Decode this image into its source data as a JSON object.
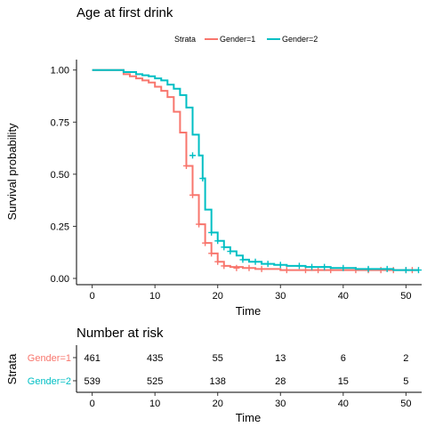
{
  "chart_data": [
    {
      "type": "line",
      "title": "Age at first drink",
      "xlabel": "Time",
      "ylabel": "Survival probability",
      "xlim": [
        -2.5,
        52.5
      ],
      "ylim": [
        -0.03,
        1.05
      ],
      "x_ticks": [
        0,
        10,
        20,
        30,
        40,
        50
      ],
      "y_ticks": [
        0,
        0.25,
        0.5,
        0.75,
        1
      ],
      "y_tick_labels": [
        "0.00",
        "0.25",
        "0.50",
        "0.75",
        "1.00"
      ],
      "x_tick_labels": [
        "0",
        "10",
        "20",
        "30",
        "40",
        "50"
      ],
      "grid": false,
      "legend": {
        "title": "Strata",
        "placement": "top"
      },
      "series": [
        {
          "name": "Gender=1",
          "color": "#F8766D",
          "step": [
            [
              0,
              1.0
            ],
            [
              5,
              0.98
            ],
            [
              6,
              0.97
            ],
            [
              7,
              0.96
            ],
            [
              8,
              0.95
            ],
            [
              9,
              0.94
            ],
            [
              10,
              0.92
            ],
            [
              11,
              0.9
            ],
            [
              12,
              0.87
            ],
            [
              13,
              0.8
            ],
            [
              14,
              0.7
            ],
            [
              15,
              0.54
            ],
            [
              16,
              0.4
            ],
            [
              17,
              0.26
            ],
            [
              18,
              0.17
            ],
            [
              19,
              0.12
            ],
            [
              20,
              0.08
            ],
            [
              21,
              0.06
            ],
            [
              22,
              0.055
            ],
            [
              24,
              0.05
            ],
            [
              26,
              0.045
            ],
            [
              30,
              0.04
            ],
            [
              52,
              0.04
            ]
          ],
          "censor": [
            [
              15,
              0.54
            ],
            [
              16,
              0.4
            ],
            [
              17,
              0.26
            ],
            [
              18,
              0.17
            ],
            [
              19,
              0.12
            ],
            [
              20,
              0.08
            ],
            [
              21,
              0.06
            ],
            [
              23,
              0.05
            ],
            [
              25,
              0.05
            ],
            [
              27,
              0.045
            ],
            [
              31,
              0.04
            ],
            [
              34,
              0.04
            ],
            [
              36,
              0.04
            ],
            [
              38,
              0.04
            ],
            [
              42,
              0.04
            ],
            [
              44,
              0.04
            ],
            [
              46,
              0.04
            ],
            [
              48,
              0.04
            ],
            [
              50,
              0.04
            ],
            [
              51,
              0.04
            ]
          ]
        },
        {
          "name": "Gender=2",
          "color": "#00BFC4",
          "step": [
            [
              0,
              1.0
            ],
            [
              5,
              0.99
            ],
            [
              7,
              0.98
            ],
            [
              8,
              0.975
            ],
            [
              9,
              0.97
            ],
            [
              10,
              0.96
            ],
            [
              11,
              0.95
            ],
            [
              12,
              0.93
            ],
            [
              13,
              0.91
            ],
            [
              14,
              0.88
            ],
            [
              15,
              0.82
            ],
            [
              16,
              0.69
            ],
            [
              17,
              0.59
            ],
            [
              17.6,
              0.48
            ],
            [
              18,
              0.33
            ],
            [
              19,
              0.22
            ],
            [
              20,
              0.18
            ],
            [
              21,
              0.15
            ],
            [
              22,
              0.13
            ],
            [
              23,
              0.11
            ],
            [
              24,
              0.09
            ],
            [
              25,
              0.08
            ],
            [
              27,
              0.07
            ],
            [
              29,
              0.065
            ],
            [
              31,
              0.06
            ],
            [
              34,
              0.055
            ],
            [
              38,
              0.05
            ],
            [
              42,
              0.045
            ],
            [
              48,
              0.04
            ],
            [
              52,
              0.04
            ]
          ],
          "censor": [
            [
              16,
              0.59
            ],
            [
              17.6,
              0.48
            ],
            [
              19,
              0.22
            ],
            [
              20,
              0.18
            ],
            [
              21,
              0.15
            ],
            [
              22,
              0.13
            ],
            [
              24,
              0.09
            ],
            [
              26,
              0.08
            ],
            [
              28,
              0.07
            ],
            [
              30,
              0.065
            ],
            [
              33,
              0.06
            ],
            [
              35,
              0.055
            ],
            [
              37,
              0.055
            ],
            [
              40,
              0.05
            ],
            [
              44,
              0.045
            ],
            [
              47,
              0.045
            ],
            [
              50,
              0.04
            ],
            [
              52,
              0.04
            ]
          ]
        }
      ]
    },
    {
      "type": "table",
      "title": "Number at risk",
      "xlabel": "Time",
      "ylabel": "Strata",
      "x_ticks": [
        0,
        10,
        20,
        30,
        40,
        50
      ],
      "x_tick_labels": [
        "0",
        "10",
        "20",
        "30",
        "40",
        "50"
      ],
      "rows": [
        {
          "label": "Gender=1",
          "color": "#F8766D",
          "values": [
            "461",
            "435",
            "55",
            "13",
            "6",
            "2"
          ]
        },
        {
          "label": "Gender=2",
          "color": "#00BFC4",
          "values": [
            "539",
            "525",
            "138",
            "28",
            "15",
            "5"
          ]
        }
      ]
    }
  ]
}
